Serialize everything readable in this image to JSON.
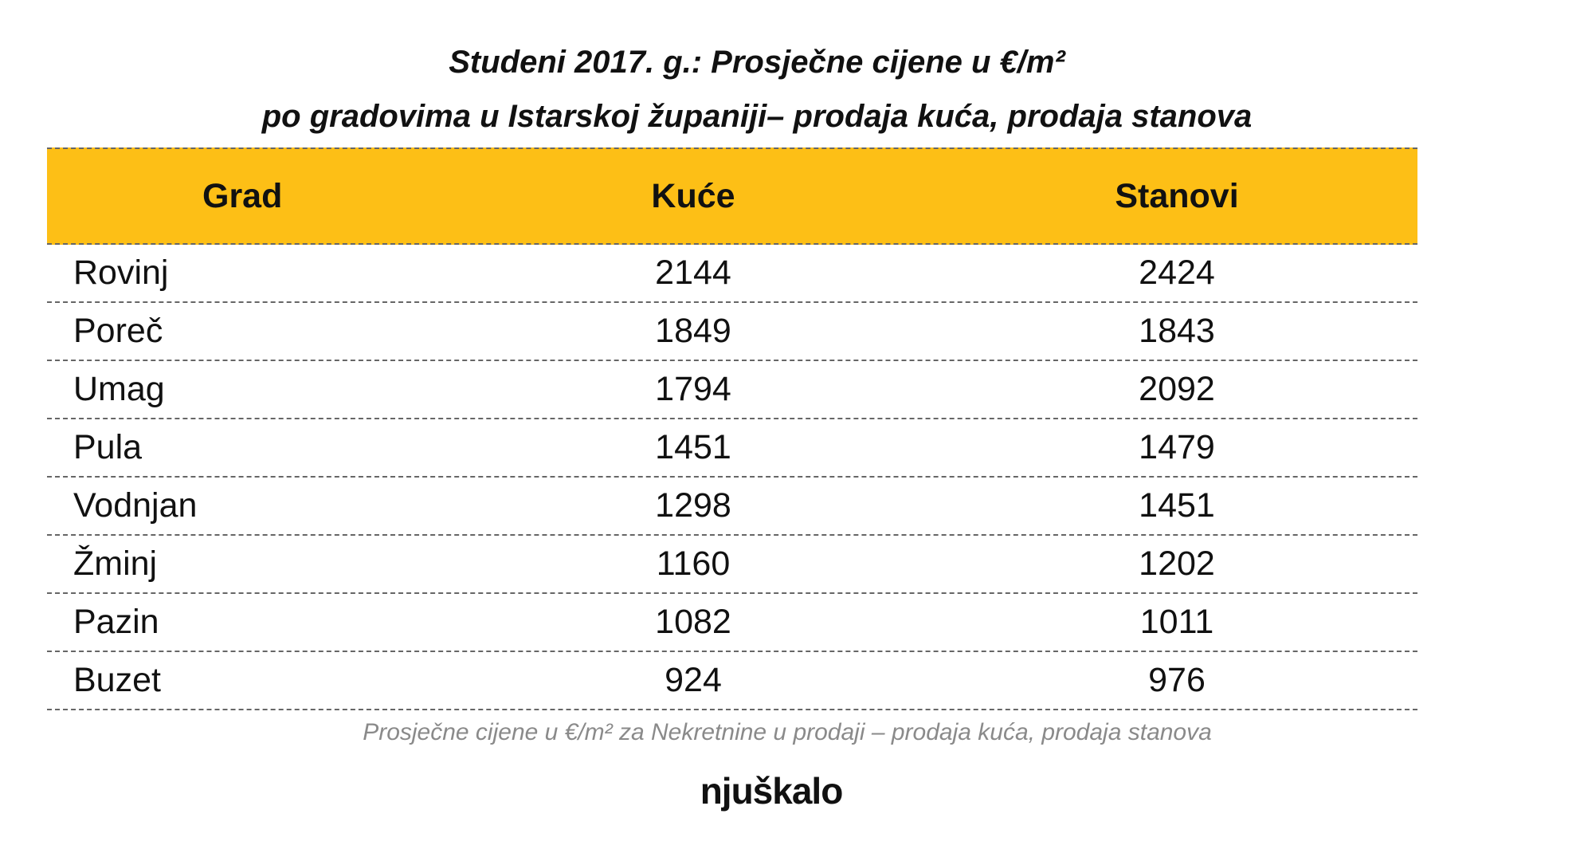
{
  "title": [
    "Studeni 2017. g.: Prosječne cijene u €/m²",
    "po gradovima u Istarskoj županiji– prodaja kuća, prodaja stanova"
  ],
  "table": {
    "header": [
      "Grad",
      "Kuće",
      "Stanovi"
    ],
    "rows": [
      [
        "Rovinj",
        2144,
        2424
      ],
      [
        "Poreč",
        1849,
        1843
      ],
      [
        "Umag",
        1794,
        2092
      ],
      [
        "Pula",
        1451,
        1479
      ],
      [
        "Vodnjan",
        1298,
        1451
      ],
      [
        "Žminj",
        1160,
        1202
      ],
      [
        "Pazin",
        1082,
        1011
      ],
      [
        "Buzet",
        924,
        976
      ]
    ]
  },
  "caption": "Prosječne cijene u €/m² za Nekretnine u prodaji – prodaja kuća, prodaja stanova",
  "logo": "njuškalo"
}
